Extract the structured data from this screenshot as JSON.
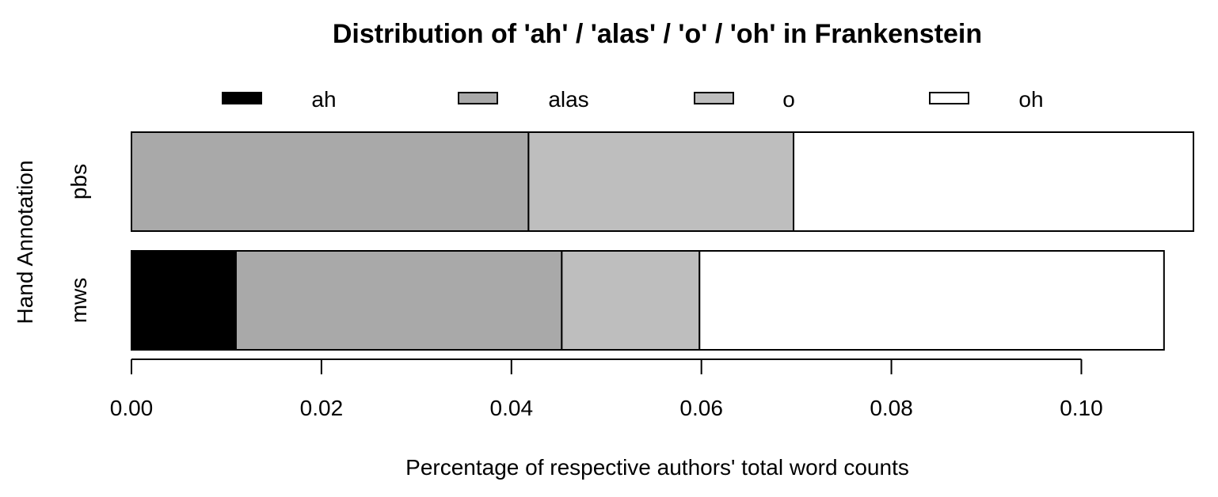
{
  "chart_data": {
    "type": "bar",
    "orientation": "horizontal",
    "stacked": true,
    "title": "Distribution of 'ah' / 'alas' / 'o' / 'oh' in Frankenstein",
    "xlabel": "Percentage of respective authors' total word counts",
    "ylabel": "Hand Annotation",
    "categories": [
      "mws",
      "pbs"
    ],
    "series": [
      {
        "name": "ah",
        "color": "#000000",
        "values": [
          0.011,
          0.0
        ]
      },
      {
        "name": "alas",
        "color": "#a9a9a9",
        "values": [
          0.0343,
          0.0418
        ]
      },
      {
        "name": "o",
        "color": "#bebebe",
        "values": [
          0.0145,
          0.0279
        ]
      },
      {
        "name": "oh",
        "color": "#ffffff",
        "values": [
          0.0489,
          0.0421
        ]
      }
    ],
    "xlim": [
      0,
      0.1118
    ],
    "xticks": [
      "0.00",
      "0.02",
      "0.04",
      "0.06",
      "0.08",
      "0.10"
    ],
    "legend_position": "top",
    "grid": false
  }
}
